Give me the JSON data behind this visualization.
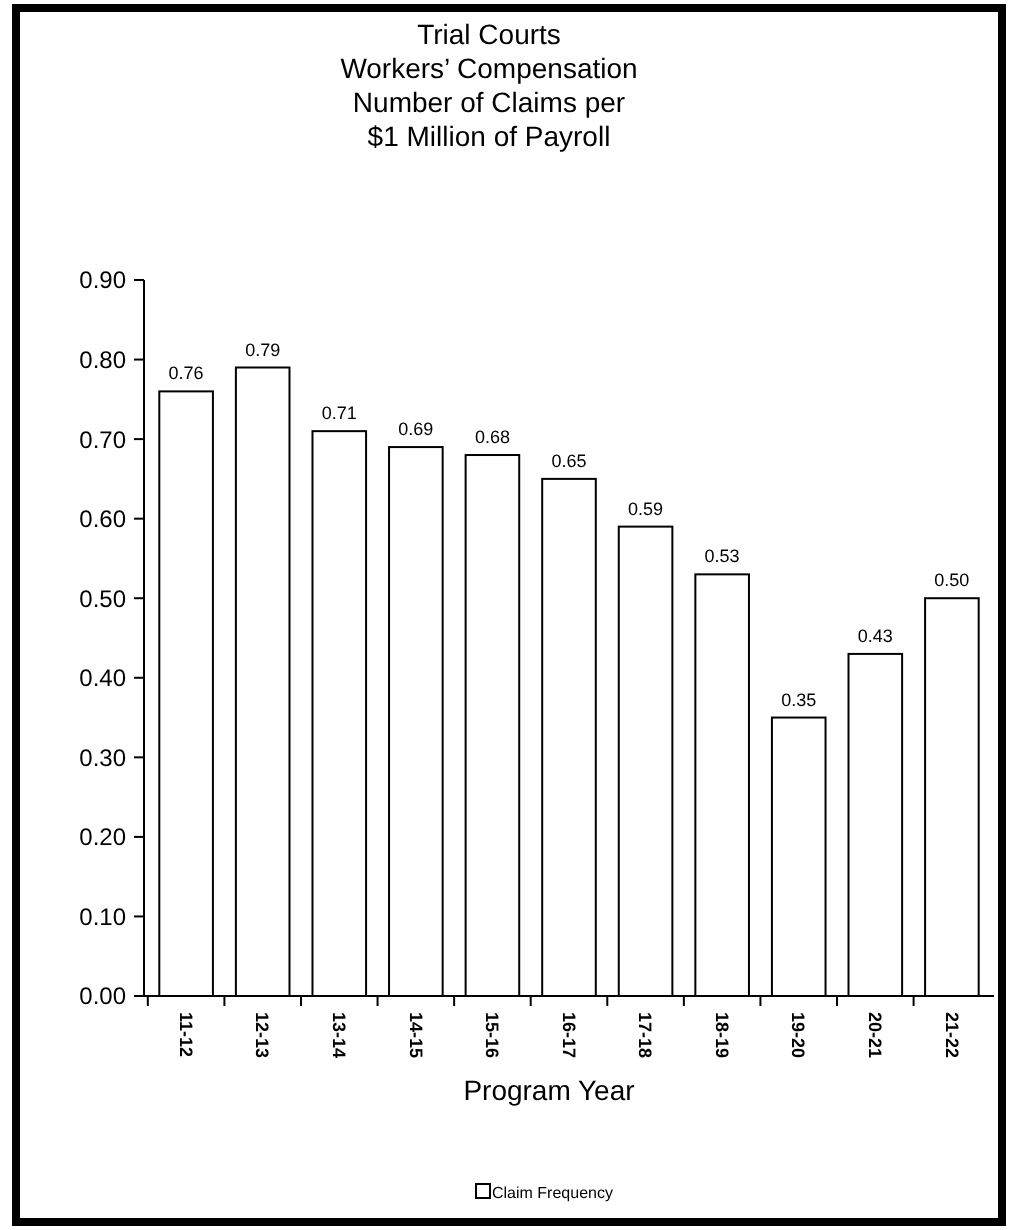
{
  "chart_data": {
    "type": "bar",
    "title": "Trial Courts\nWorkers’ Compensation\nNumber of Claims per\n$1 Million of Payroll",
    "xlabel": "Program Year",
    "categories": [
      "11-12",
      "12-13",
      "13-14",
      "14-15",
      "15-16",
      "16-17",
      "17-18",
      "18-19",
      "19-20",
      "20-21",
      "21-22"
    ],
    "series": [
      {
        "name": "Claim Frequency",
        "color": "#ffffff",
        "values": [
          0.76,
          0.79,
          0.71,
          0.69,
          0.68,
          0.65,
          0.59,
          0.53,
          0.35,
          0.43,
          0.5
        ],
        "value_labels": [
          "0.76",
          "0.79",
          "0.71",
          "0.69",
          "0.68",
          "0.65",
          "0.59",
          "0.53",
          "0.35",
          "0.43",
          "0.50"
        ]
      }
    ],
    "ylim": [
      0,
      0.9
    ],
    "yticks": [
      {
        "value": 0,
        "label": "0.00"
      },
      {
        "value": 0.1,
        "label": "0.10"
      },
      {
        "value": 0.2,
        "label": "0.20"
      },
      {
        "value": 0.3,
        "label": "0.30"
      },
      {
        "value": 0.4,
        "label": "0.40"
      },
      {
        "value": 0.5,
        "label": "0.50"
      },
      {
        "value": 0.6,
        "label": "0.60"
      },
      {
        "value": 0.7,
        "label": "0.70"
      },
      {
        "value": 0.8,
        "label": "0.80"
      },
      {
        "value": 0.9,
        "label": "0.90"
      }
    ],
    "grid": false,
    "legend": "bottom"
  }
}
